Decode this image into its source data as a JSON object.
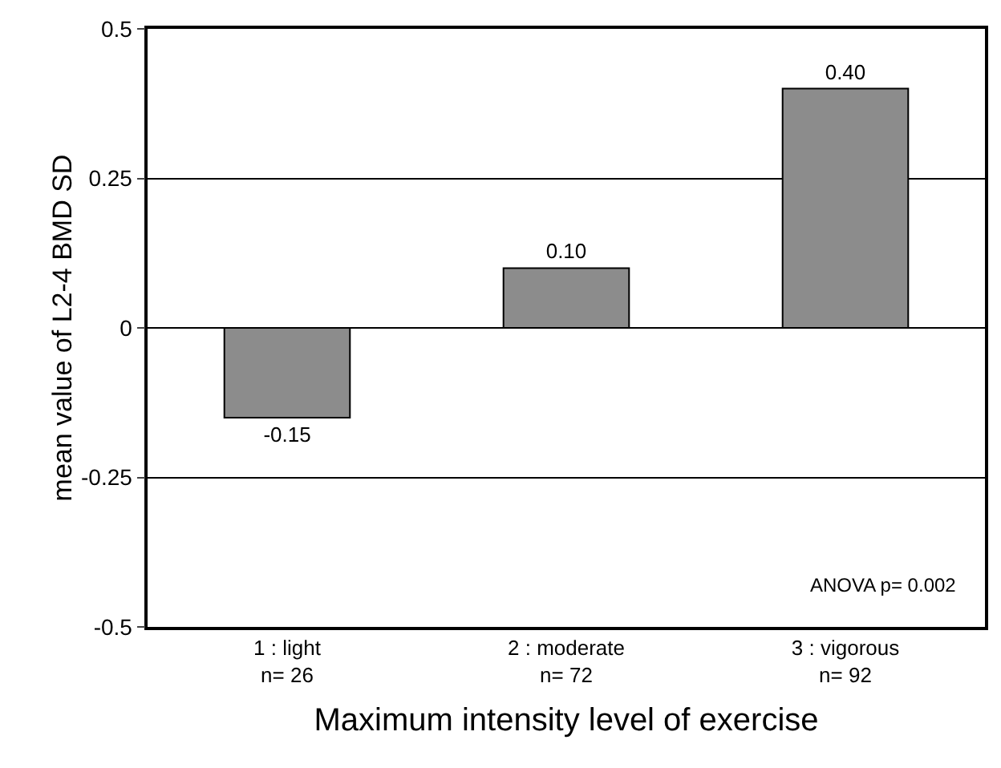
{
  "chart_data": {
    "type": "bar",
    "xlabel": "Maximum intensity level of exercise",
    "ylabel": "mean value of L2-4 BMD SD",
    "categories": [
      "1 : light\nn= 26",
      "2 : moderate\nn= 72",
      "3 : vigorous\nn= 92"
    ],
    "values": [
      -0.15,
      0.1,
      0.4
    ],
    "value_labels": [
      "-0.15",
      "0.10",
      "0.40"
    ],
    "color": "#8c8c8c",
    "ylim": [
      -0.5,
      0.5
    ],
    "yticks": [
      -0.5,
      -0.25,
      0,
      0.25,
      0.5
    ],
    "grid": "y",
    "annotations": [
      "ANOVA p= 0.002"
    ]
  }
}
